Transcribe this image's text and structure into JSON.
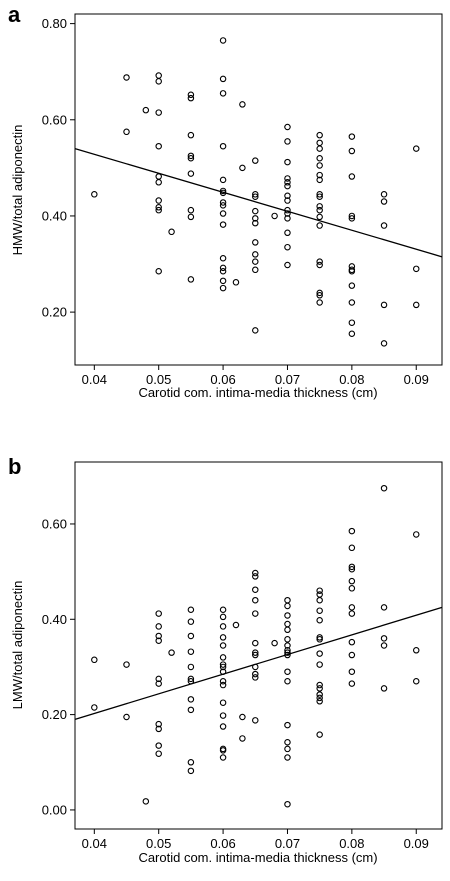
{
  "chart_data": [
    {
      "panel_label": "a",
      "type": "scatter",
      "xlabel": "Carotid com. intima-media thickness (cm)",
      "ylabel": "HMW/total adiponectin",
      "xlim": [
        0.037,
        0.094
      ],
      "ylim": [
        0.09,
        0.82
      ],
      "x_ticks": [
        "0.04",
        "0.05",
        "0.06",
        "0.07",
        "0.08",
        "0.09"
      ],
      "y_ticks": [
        "0.20",
        "0.40",
        "0.60",
        "0.80"
      ],
      "x_tick_values": [
        0.04,
        0.05,
        0.06,
        0.07,
        0.08,
        0.09
      ],
      "y_tick_values": [
        0.2,
        0.4,
        0.6,
        0.8
      ],
      "fit_line": {
        "x": [
          0.037,
          0.094
        ],
        "y": [
          0.54,
          0.315
        ]
      },
      "points": [
        [
          0.04,
          0.445
        ],
        [
          0.045,
          0.688
        ],
        [
          0.045,
          0.575
        ],
        [
          0.048,
          0.62
        ],
        [
          0.05,
          0.692
        ],
        [
          0.05,
          0.68
        ],
        [
          0.05,
          0.615
        ],
        [
          0.05,
          0.545
        ],
        [
          0.05,
          0.482
        ],
        [
          0.05,
          0.47
        ],
        [
          0.05,
          0.432
        ],
        [
          0.05,
          0.418
        ],
        [
          0.05,
          0.412
        ],
        [
          0.05,
          0.285
        ],
        [
          0.052,
          0.367
        ],
        [
          0.055,
          0.652
        ],
        [
          0.055,
          0.645
        ],
        [
          0.055,
          0.568
        ],
        [
          0.055,
          0.525
        ],
        [
          0.055,
          0.52
        ],
        [
          0.055,
          0.488
        ],
        [
          0.055,
          0.412
        ],
        [
          0.055,
          0.398
        ],
        [
          0.055,
          0.268
        ],
        [
          0.06,
          0.765
        ],
        [
          0.06,
          0.685
        ],
        [
          0.06,
          0.655
        ],
        [
          0.06,
          0.545
        ],
        [
          0.06,
          0.475
        ],
        [
          0.06,
          0.452
        ],
        [
          0.06,
          0.448
        ],
        [
          0.06,
          0.428
        ],
        [
          0.06,
          0.422
        ],
        [
          0.06,
          0.405
        ],
        [
          0.06,
          0.382
        ],
        [
          0.06,
          0.312
        ],
        [
          0.06,
          0.292
        ],
        [
          0.06,
          0.285
        ],
        [
          0.06,
          0.265
        ],
        [
          0.06,
          0.25
        ],
        [
          0.062,
          0.262
        ],
        [
          0.063,
          0.632
        ],
        [
          0.063,
          0.5
        ],
        [
          0.065,
          0.515
        ],
        [
          0.065,
          0.445
        ],
        [
          0.065,
          0.44
        ],
        [
          0.065,
          0.41
        ],
        [
          0.065,
          0.395
        ],
        [
          0.065,
          0.385
        ],
        [
          0.065,
          0.345
        ],
        [
          0.065,
          0.32
        ],
        [
          0.065,
          0.305
        ],
        [
          0.065,
          0.288
        ],
        [
          0.065,
          0.162
        ],
        [
          0.068,
          0.4
        ],
        [
          0.07,
          0.585
        ],
        [
          0.07,
          0.555
        ],
        [
          0.07,
          0.512
        ],
        [
          0.07,
          0.478
        ],
        [
          0.07,
          0.47
        ],
        [
          0.07,
          0.462
        ],
        [
          0.07,
          0.442
        ],
        [
          0.07,
          0.432
        ],
        [
          0.07,
          0.412
        ],
        [
          0.07,
          0.405
        ],
        [
          0.07,
          0.395
        ],
        [
          0.07,
          0.365
        ],
        [
          0.07,
          0.335
        ],
        [
          0.07,
          0.298
        ],
        [
          0.075,
          0.568
        ],
        [
          0.075,
          0.552
        ],
        [
          0.075,
          0.54
        ],
        [
          0.075,
          0.52
        ],
        [
          0.075,
          0.505
        ],
        [
          0.075,
          0.485
        ],
        [
          0.075,
          0.475
        ],
        [
          0.075,
          0.445
        ],
        [
          0.075,
          0.44
        ],
        [
          0.075,
          0.42
        ],
        [
          0.075,
          0.412
        ],
        [
          0.075,
          0.398
        ],
        [
          0.075,
          0.38
        ],
        [
          0.075,
          0.305
        ],
        [
          0.075,
          0.298
        ],
        [
          0.075,
          0.24
        ],
        [
          0.075,
          0.235
        ],
        [
          0.075,
          0.22
        ],
        [
          0.08,
          0.565
        ],
        [
          0.08,
          0.535
        ],
        [
          0.08,
          0.482
        ],
        [
          0.08,
          0.4
        ],
        [
          0.08,
          0.395
        ],
        [
          0.08,
          0.295
        ],
        [
          0.08,
          0.288
        ],
        [
          0.08,
          0.285
        ],
        [
          0.08,
          0.255
        ],
        [
          0.08,
          0.22
        ],
        [
          0.08,
          0.178
        ],
        [
          0.08,
          0.155
        ],
        [
          0.085,
          0.445
        ],
        [
          0.085,
          0.43
        ],
        [
          0.085,
          0.38
        ],
        [
          0.085,
          0.215
        ],
        [
          0.085,
          0.135
        ],
        [
          0.09,
          0.54
        ],
        [
          0.09,
          0.29
        ],
        [
          0.09,
          0.215
        ]
      ]
    },
    {
      "panel_label": "b",
      "type": "scatter",
      "xlabel": "Carotid com. intima-media thickness (cm)",
      "ylabel": "LMW/total adiponectin",
      "xlim": [
        0.037,
        0.094
      ],
      "ylim": [
        -0.04,
        0.73
      ],
      "x_ticks": [
        "0.04",
        "0.05",
        "0.06",
        "0.07",
        "0.08",
        "0.09"
      ],
      "y_ticks": [
        "0.00",
        "0.20",
        "0.40",
        "0.60"
      ],
      "x_tick_values": [
        0.04,
        0.05,
        0.06,
        0.07,
        0.08,
        0.09
      ],
      "y_tick_values": [
        0.0,
        0.2,
        0.4,
        0.6
      ],
      "fit_line": {
        "x": [
          0.037,
          0.094
        ],
        "y": [
          0.19,
          0.425
        ]
      },
      "points": [
        [
          0.04,
          0.315
        ],
        [
          0.04,
          0.215
        ],
        [
          0.045,
          0.305
        ],
        [
          0.045,
          0.195
        ],
        [
          0.048,
          0.018
        ],
        [
          0.05,
          0.412
        ],
        [
          0.05,
          0.385
        ],
        [
          0.05,
          0.365
        ],
        [
          0.05,
          0.355
        ],
        [
          0.05,
          0.275
        ],
        [
          0.05,
          0.265
        ],
        [
          0.05,
          0.18
        ],
        [
          0.05,
          0.17
        ],
        [
          0.05,
          0.135
        ],
        [
          0.05,
          0.118
        ],
        [
          0.052,
          0.33
        ],
        [
          0.055,
          0.42
        ],
        [
          0.055,
          0.395
        ],
        [
          0.055,
          0.365
        ],
        [
          0.055,
          0.332
        ],
        [
          0.055,
          0.3
        ],
        [
          0.055,
          0.275
        ],
        [
          0.055,
          0.27
        ],
        [
          0.055,
          0.232
        ],
        [
          0.055,
          0.21
        ],
        [
          0.055,
          0.1
        ],
        [
          0.055,
          0.082
        ],
        [
          0.06,
          0.42
        ],
        [
          0.06,
          0.405
        ],
        [
          0.06,
          0.385
        ],
        [
          0.06,
          0.362
        ],
        [
          0.06,
          0.345
        ],
        [
          0.06,
          0.32
        ],
        [
          0.06,
          0.305
        ],
        [
          0.06,
          0.3
        ],
        [
          0.06,
          0.29
        ],
        [
          0.06,
          0.27
        ],
        [
          0.06,
          0.262
        ],
        [
          0.06,
          0.225
        ],
        [
          0.06,
          0.198
        ],
        [
          0.06,
          0.175
        ],
        [
          0.06,
          0.128
        ],
        [
          0.06,
          0.125
        ],
        [
          0.06,
          0.11
        ],
        [
          0.062,
          0.388
        ],
        [
          0.063,
          0.195
        ],
        [
          0.063,
          0.15
        ],
        [
          0.065,
          0.497
        ],
        [
          0.065,
          0.49
        ],
        [
          0.065,
          0.462
        ],
        [
          0.065,
          0.44
        ],
        [
          0.065,
          0.412
        ],
        [
          0.065,
          0.35
        ],
        [
          0.065,
          0.33
        ],
        [
          0.065,
          0.325
        ],
        [
          0.065,
          0.3
        ],
        [
          0.065,
          0.285
        ],
        [
          0.065,
          0.278
        ],
        [
          0.065,
          0.188
        ],
        [
          0.068,
          0.35
        ],
        [
          0.07,
          0.44
        ],
        [
          0.07,
          0.428
        ],
        [
          0.07,
          0.408
        ],
        [
          0.07,
          0.39
        ],
        [
          0.07,
          0.378
        ],
        [
          0.07,
          0.358
        ],
        [
          0.07,
          0.345
        ],
        [
          0.07,
          0.335
        ],
        [
          0.07,
          0.33
        ],
        [
          0.07,
          0.325
        ],
        [
          0.07,
          0.29
        ],
        [
          0.07,
          0.27
        ],
        [
          0.07,
          0.178
        ],
        [
          0.07,
          0.142
        ],
        [
          0.07,
          0.128
        ],
        [
          0.07,
          0.11
        ],
        [
          0.07,
          0.012
        ],
        [
          0.075,
          0.46
        ],
        [
          0.075,
          0.452
        ],
        [
          0.075,
          0.44
        ],
        [
          0.075,
          0.418
        ],
        [
          0.075,
          0.398
        ],
        [
          0.075,
          0.362
        ],
        [
          0.075,
          0.358
        ],
        [
          0.075,
          0.328
        ],
        [
          0.075,
          0.305
        ],
        [
          0.075,
          0.262
        ],
        [
          0.075,
          0.255
        ],
        [
          0.075,
          0.242
        ],
        [
          0.075,
          0.235
        ],
        [
          0.075,
          0.228
        ],
        [
          0.075,
          0.158
        ],
        [
          0.08,
          0.585
        ],
        [
          0.08,
          0.55
        ],
        [
          0.08,
          0.51
        ],
        [
          0.08,
          0.505
        ],
        [
          0.08,
          0.48
        ],
        [
          0.08,
          0.465
        ],
        [
          0.08,
          0.425
        ],
        [
          0.08,
          0.412
        ],
        [
          0.08,
          0.352
        ],
        [
          0.08,
          0.325
        ],
        [
          0.08,
          0.29
        ],
        [
          0.08,
          0.265
        ],
        [
          0.085,
          0.675
        ],
        [
          0.085,
          0.425
        ],
        [
          0.085,
          0.36
        ],
        [
          0.085,
          0.345
        ],
        [
          0.085,
          0.255
        ],
        [
          0.09,
          0.578
        ],
        [
          0.09,
          0.335
        ],
        [
          0.09,
          0.27
        ]
      ]
    }
  ]
}
